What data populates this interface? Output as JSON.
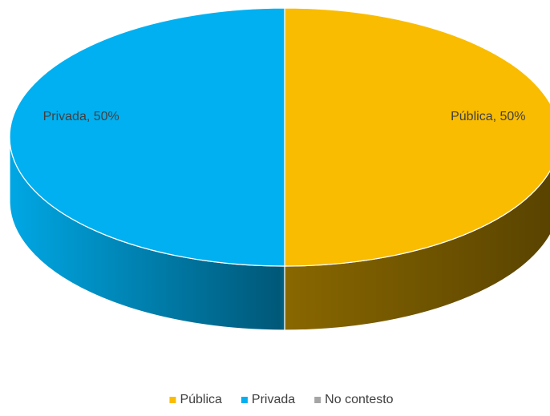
{
  "chart_data": {
    "type": "pie3d",
    "categories": [
      "Pública",
      "Privada",
      "No contesto"
    ],
    "values": [
      50,
      50,
      0
    ],
    "value_labels": [
      "Pública, 50%",
      "Privada, 50%",
      null
    ],
    "colors": [
      "#f9bc00",
      "#00b0f0",
      "#a5a5a5"
    ],
    "legend": "bottom"
  }
}
